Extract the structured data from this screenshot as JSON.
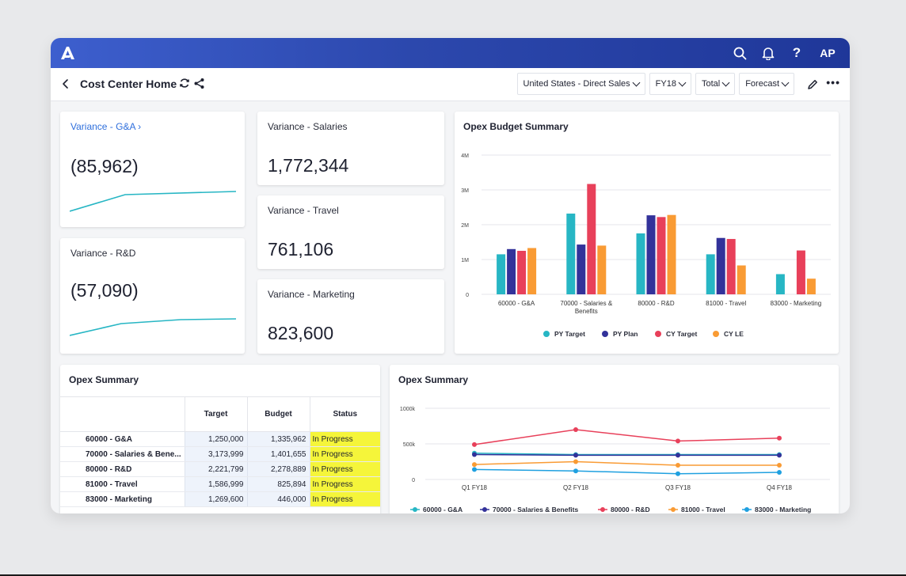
{
  "app": {
    "logo_letter": "A",
    "avatar": "AP",
    "help": "?",
    "page_title": "Cost Center Home",
    "colors": {
      "topbar": "#2c48ad",
      "accent": "#2f6fdc",
      "spark": "#27b6c4",
      "status_highlight": "#f5f53a"
    }
  },
  "icons": [
    "back-arrow-icon",
    "refresh-icon",
    "share-icon",
    "search-icon",
    "bell-icon",
    "help-icon",
    "pencil-icon",
    "more-icon"
  ],
  "filters": [
    {
      "label": "United States - Direct Sales"
    },
    {
      "label": "FY18"
    },
    {
      "label": "Total"
    },
    {
      "label": "Forecast"
    }
  ],
  "more_label": "•••",
  "kpis": {
    "ga": {
      "title": "Variance - G&A",
      "arrow": "›",
      "value": "(85,962)"
    },
    "rd": {
      "title": "Variance - R&D",
      "value": "(57,090)"
    },
    "salaries": {
      "title": "Variance - Salaries",
      "value": "1,772,344"
    },
    "travel": {
      "title": "Variance - Travel",
      "value": "761,106"
    },
    "marketing": {
      "title": "Variance - Marketing",
      "value": "823,600"
    }
  },
  "opex_table": {
    "title": "Opex Summary",
    "columns": [
      "",
      "Target",
      "Budget",
      "Status"
    ],
    "rows": [
      [
        "60000 - G&A",
        "1,250,000",
        "1,335,962",
        "In Progress"
      ],
      [
        "70000 - Salaries & Bene...",
        "3,173,999",
        "1,401,655",
        "In Progress"
      ],
      [
        "80000 - R&D",
        "2,221,799",
        "2,278,889",
        "In Progress"
      ],
      [
        "81000 - Travel",
        "1,586,999",
        "825,894",
        "In Progress"
      ],
      [
        "83000 - Marketing",
        "1,269,600",
        "446,000",
        "In Progress"
      ]
    ]
  },
  "chart_data": [
    {
      "type": "bar",
      "title": "Opex Budget Summary",
      "categories": [
        "60000 - G&A",
        "70000 - Salaries & Benefits",
        "80000 - R&D",
        "81000 - Travel",
        "83000 - Marketing"
      ],
      "category_lines": [
        [
          "60000 - G&A"
        ],
        [
          "70000 - Salaries &",
          "Benefits"
        ],
        [
          "80000 - R&D"
        ],
        [
          "81000 - Travel"
        ],
        [
          "83000 - Marketing"
        ]
      ],
      "series": [
        {
          "name": "PY Target",
          "color": "#27b6c4",
          "values": [
            1150000,
            2320000,
            1750000,
            1150000,
            580000
          ]
        },
        {
          "name": "PY Plan",
          "color": "#33329a",
          "values": [
            1300000,
            1430000,
            2270000,
            1620000,
            null
          ]
        },
        {
          "name": "CY Target",
          "color": "#e8405a",
          "values": [
            1250000,
            3170000,
            2220000,
            1590000,
            1260000
          ]
        },
        {
          "name": "CY LE",
          "color": "#f99b34",
          "values": [
            1330000,
            1400000,
            2280000,
            830000,
            450000
          ]
        }
      ],
      "ylim": [
        0,
        4000000
      ],
      "yticks": [
        0,
        1000000,
        2000000,
        3000000,
        4000000
      ],
      "ytick_labels": [
        "0",
        "1M",
        "2M",
        "3M",
        "4M"
      ],
      "grid": true,
      "legend": "bottom"
    },
    {
      "type": "line",
      "title": "Opex Summary",
      "x": [
        "Q1 FY18",
        "Q2 FY18",
        "Q3 FY18",
        "Q4 FY18"
      ],
      "series": [
        {
          "name": "60000 - G&A",
          "color": "#27b6c4",
          "values": [
            370000,
            350000,
            350000,
            350000
          ]
        },
        {
          "name": "70000 - Salaries & Benefits",
          "color": "#33329a",
          "values": [
            350000,
            340000,
            340000,
            340000
          ]
        },
        {
          "name": "80000 - R&D",
          "color": "#e8405a",
          "values": [
            490000,
            700000,
            540000,
            580000
          ]
        },
        {
          "name": "81000 - Travel",
          "color": "#f99b34",
          "values": [
            210000,
            250000,
            200000,
            200000
          ]
        },
        {
          "name": "83000 - Marketing",
          "color": "#1fa0e0",
          "values": [
            140000,
            120000,
            80000,
            100000
          ]
        }
      ],
      "ylim": [
        0,
        1000000
      ],
      "yticks": [
        0,
        500000,
        1000000
      ],
      "ytick_labels": [
        "0",
        "500k",
        "1000k"
      ],
      "grid": true,
      "legend": "bottom"
    }
  ]
}
